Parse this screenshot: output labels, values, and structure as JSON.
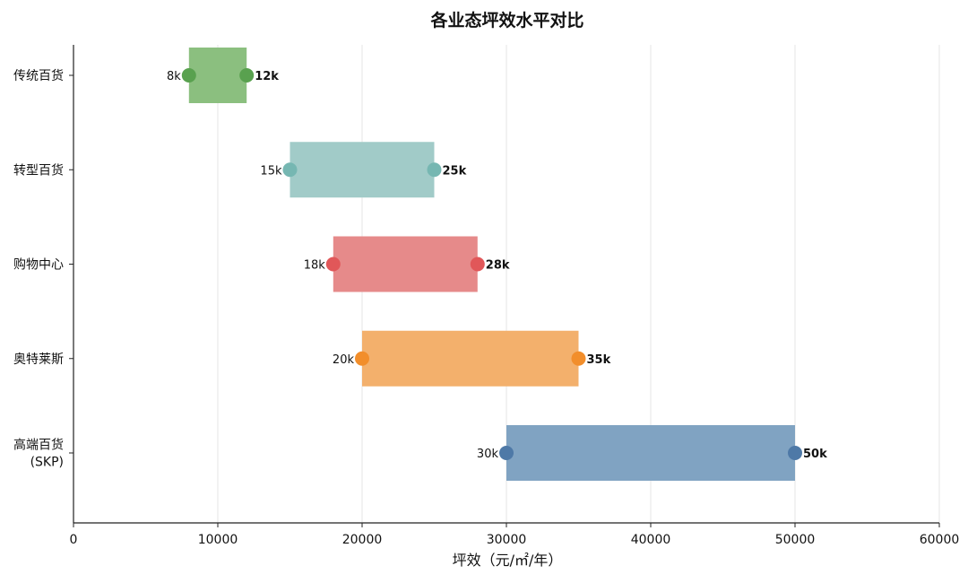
{
  "chart_data": {
    "type": "bar",
    "orientation": "horizontal-range",
    "title": "各业态坪效水平对比",
    "xlabel": "坪效（元/㎡/年）",
    "ylabel": "",
    "xlim": [
      0,
      60000
    ],
    "xticks": [
      0,
      10000,
      20000,
      30000,
      40000,
      50000,
      60000
    ],
    "xtick_labels": [
      "0",
      "10000",
      "20000",
      "30000",
      "40000",
      "50000",
      "60000"
    ],
    "grid": "vertical",
    "categories": [
      {
        "lines": [
          "传统百货"
        ]
      },
      {
        "lines": [
          "转型百货"
        ]
      },
      {
        "lines": [
          "购物中心"
        ]
      },
      {
        "lines": [
          "奥特莱斯"
        ]
      },
      {
        "lines": [
          "高端百货",
          "(SKP)"
        ]
      }
    ],
    "series": [
      {
        "low": 8000,
        "high": 12000,
        "low_label": "8k",
        "high_label": "12k",
        "bar_color": "#8bbf7f",
        "dot_color": "#59a14f"
      },
      {
        "low": 15000,
        "high": 25000,
        "low_label": "15k",
        "high_label": "25k",
        "bar_color": "#a1cbc8",
        "dot_color": "#76b7b2"
      },
      {
        "low": 18000,
        "high": 28000,
        "low_label": "18k",
        "high_label": "28k",
        "bar_color": "#e68a8a",
        "dot_color": "#e15759"
      },
      {
        "low": 20000,
        "high": 35000,
        "low_label": "20k",
        "high_label": "35k",
        "bar_color": "#f3b06c",
        "dot_color": "#f28e2b"
      },
      {
        "low": 30000,
        "high": 50000,
        "low_label": "30k",
        "high_label": "50k",
        "bar_color": "#80a3c2",
        "dot_color": "#4e79a7"
      }
    ]
  }
}
